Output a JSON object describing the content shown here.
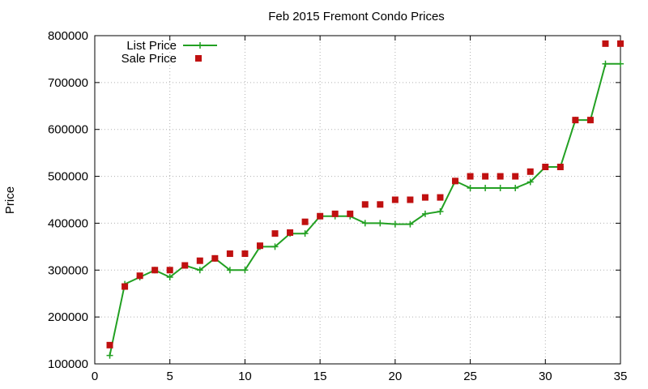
{
  "chart_data": {
    "type": "line",
    "title": "Feb 2015 Fremont Condo Prices",
    "xlabel": "",
    "ylabel": "Price",
    "xlim": [
      0,
      35
    ],
    "ylim": [
      100000,
      800000
    ],
    "xticks": [
      0,
      5,
      10,
      15,
      20,
      25,
      30,
      35
    ],
    "yticks": [
      100000,
      200000,
      300000,
      400000,
      500000,
      600000,
      700000,
      800000
    ],
    "grid": true,
    "legend_position": "top-left",
    "series": [
      {
        "name": "List Price",
        "style": "line-with-plus-markers",
        "color": "#22a022",
        "x": [
          1,
          2,
          3,
          4,
          5,
          6,
          7,
          8,
          9,
          10,
          11,
          12,
          13,
          14,
          15,
          16,
          17,
          18,
          19,
          20,
          21,
          22,
          23,
          24,
          25,
          26,
          27,
          28,
          29,
          30,
          31,
          32,
          33,
          34,
          35
        ],
        "y": [
          118000,
          270000,
          285000,
          300000,
          285000,
          310000,
          300000,
          325000,
          300000,
          300000,
          350000,
          350000,
          378000,
          378000,
          415000,
          415000,
          415000,
          400000,
          400000,
          398000,
          398000,
          420000,
          425000,
          490000,
          475000,
          475000,
          475000,
          475000,
          488000,
          520000,
          520000,
          620000,
          620000,
          740000,
          740000
        ]
      },
      {
        "name": "Sale Price",
        "style": "square-markers",
        "color": "#c01010",
        "x": [
          1,
          2,
          3,
          4,
          5,
          6,
          7,
          8,
          9,
          10,
          11,
          12,
          13,
          14,
          15,
          16,
          17,
          18,
          19,
          20,
          21,
          22,
          23,
          24,
          25,
          26,
          27,
          28,
          29,
          30,
          31,
          32,
          33,
          34,
          35
        ],
        "y": [
          140000,
          265000,
          288000,
          300000,
          300000,
          310000,
          320000,
          325000,
          335000,
          335000,
          352000,
          378000,
          380000,
          403000,
          415000,
          420000,
          420000,
          440000,
          440000,
          450000,
          450000,
          455000,
          455000,
          490000,
          500000,
          500000,
          500000,
          500000,
          510000,
          520000,
          520000,
          620000,
          620000,
          783000,
          783000
        ]
      }
    ]
  }
}
